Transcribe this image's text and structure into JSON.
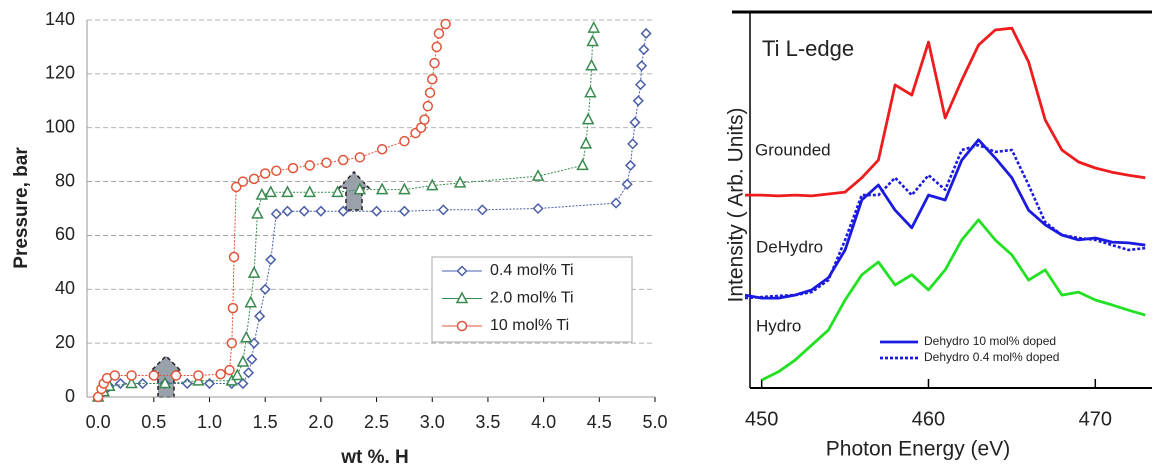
{
  "chart_data": [
    {
      "type": "line",
      "xlabel": "wt %. H",
      "ylabel": "Pressure, bar",
      "xlim": [
        -0.1,
        5.0
      ],
      "ylim": [
        0,
        140
      ],
      "xticks": [
        {
          "value": 0,
          "label": "0.0"
        },
        0.5,
        {
          "value": 1,
          "label": "1.0"
        },
        1.5,
        {
          "value": 2,
          "label": "2.0"
        },
        2.5,
        {
          "value": 3,
          "label": "3.0"
        },
        3.5,
        {
          "value": 4,
          "label": "4.0"
        },
        4.5,
        {
          "value": 5,
          "label": "5.0"
        }
      ],
      "yticks": [
        0,
        20,
        40,
        60,
        80,
        100,
        120,
        140
      ],
      "grid": true,
      "legend": "lower right",
      "series": [
        {
          "name": "0.4 mol% Ti",
          "color": "#4a5fa8",
          "marker": "diamond",
          "x": [
            0,
            0.02,
            0.05,
            0.1,
            0.2,
            0.4,
            0.6,
            0.8,
            1.0,
            1.2,
            1.3,
            1.35,
            1.38,
            1.4,
            1.45,
            1.5,
            1.55,
            1.6,
            1.7,
            1.85,
            2.0,
            2.2,
            2.5,
            2.75,
            3.1,
            3.45,
            3.95,
            4.65,
            4.75,
            4.78,
            4.8,
            4.82,
            4.85,
            4.87,
            4.88,
            4.9,
            4.92
          ],
          "values": [
            0,
            1,
            2,
            4,
            5,
            5,
            5,
            5,
            5,
            5,
            5,
            9,
            14,
            20,
            30,
            40,
            51,
            68,
            69,
            69,
            69,
            69,
            69,
            69,
            69.5,
            69.5,
            70,
            72,
            79,
            86,
            94,
            102,
            110,
            116,
            123,
            129,
            135
          ]
        },
        {
          "name": "2.0 mol% Ti",
          "color": "#3a8a50",
          "marker": "triangle",
          "x": [
            0,
            0.05,
            0.1,
            0.3,
            0.6,
            0.9,
            1.2,
            1.25,
            1.3,
            1.33,
            1.37,
            1.4,
            1.43,
            1.47,
            1.55,
            1.7,
            1.9,
            2.15,
            2.35,
            2.55,
            2.75,
            3.0,
            3.25,
            3.95,
            4.35,
            4.38,
            4.4,
            4.42,
            4.43,
            4.44,
            4.45
          ],
          "values": [
            0,
            2,
            4,
            5,
            5,
            6,
            6,
            8,
            13,
            22,
            35,
            46,
            68,
            75,
            76,
            76,
            76,
            76,
            77,
            77,
            77,
            78.5,
            79.5,
            82,
            86,
            94,
            103,
            113,
            123,
            132,
            137
          ]
        },
        {
          "name": "10 mol% Ti",
          "color": "#e0553a",
          "marker": "circle",
          "x": [
            0,
            0.03,
            0.05,
            0.08,
            0.15,
            0.3,
            0.5,
            0.7,
            0.9,
            1.1,
            1.18,
            1.2,
            1.21,
            1.22,
            1.24,
            1.3,
            1.4,
            1.5,
            1.6,
            1.75,
            1.9,
            2.05,
            2.2,
            2.35,
            2.55,
            2.75,
            2.85,
            2.9,
            2.93,
            2.96,
            2.98,
            3.0,
            3.02,
            3.04,
            3.06,
            3.12
          ],
          "values": [
            0,
            3,
            5,
            7,
            8,
            8,
            8,
            8,
            8,
            8.5,
            10,
            20,
            33,
            52,
            78,
            80,
            81,
            83,
            84,
            85,
            86,
            87,
            88,
            89,
            92,
            95,
            98,
            100,
            103,
            108,
            113,
            118,
            124,
            130,
            135,
            138.5
          ]
        }
      ]
    },
    {
      "type": "line",
      "xlabel": "Photon Energy (eV)",
      "ylabel": "Intensity ( Arb. Units)",
      "xlim": [
        449.3,
        473.4
      ],
      "ylim": [
        0,
        100
      ],
      "xticks": [
        450,
        460,
        470
      ],
      "legend": "lower center",
      "annotations": [
        "Ti L-edge",
        "Grounded",
        "DeHydro",
        "Hydro"
      ],
      "x": [
        449,
        450,
        451,
        452,
        453,
        454,
        455,
        456,
        457,
        458,
        459,
        460,
        461,
        462,
        463,
        464,
        465,
        466,
        467,
        468,
        469,
        470,
        471,
        472,
        473
      ],
      "series": [
        {
          "color": "#ee1c1c",
          "linestyle": "solid",
          "values": [
            51.3,
            51.3,
            51.1,
            51.3,
            51.1,
            51.6,
            52.1,
            55.9,
            60.6,
            80.6,
            77.9,
            92.0,
            71.8,
            81.9,
            91.2,
            95.2,
            95.7,
            86.7,
            71.3,
            63.3,
            60.1,
            58.5,
            57.4,
            56.6,
            55.9
          ]
        },
        {
          "name": "Dehydro 10 mol% doped",
          "color": "#1a1ae0",
          "linestyle": "solid",
          "values": [
            24.7,
            23.9,
            23.9,
            24.7,
            26.1,
            29.3,
            36.7,
            50.0,
            54.0,
            47.3,
            42.6,
            51.3,
            50.0,
            60.6,
            66.0,
            61.2,
            55.9,
            47.3,
            43.4,
            40.7,
            39.4,
            39.9,
            38.8,
            38.6,
            38.0
          ]
        },
        {
          "name": "Dehydro 0.4 mol% doped",
          "color": "#1a1ae0",
          "linestyle": "dotted",
          "values": [
            23.9,
            24.2,
            24.5,
            24.7,
            25.5,
            28.7,
            39.4,
            51.3,
            51.3,
            55.9,
            51.3,
            56.6,
            52.7,
            63.3,
            64.6,
            62.8,
            63.3,
            54.0,
            44.1,
            40.7,
            39.9,
            39.4,
            38.0,
            36.7,
            37.2
          ]
        },
        {
          "color": "#22e022",
          "linestyle": "solid",
          "values": [
            null,
            2.1,
            4.3,
            7.4,
            11.4,
            15.4,
            23.4,
            30.1,
            33.5,
            27.4,
            30.1,
            26.1,
            31.4,
            39.4,
            44.7,
            39.4,
            35.4,
            28.7,
            31.4,
            24.7,
            25.5,
            23.4,
            22.1,
            20.7,
            19.4
          ]
        }
      ]
    }
  ]
}
